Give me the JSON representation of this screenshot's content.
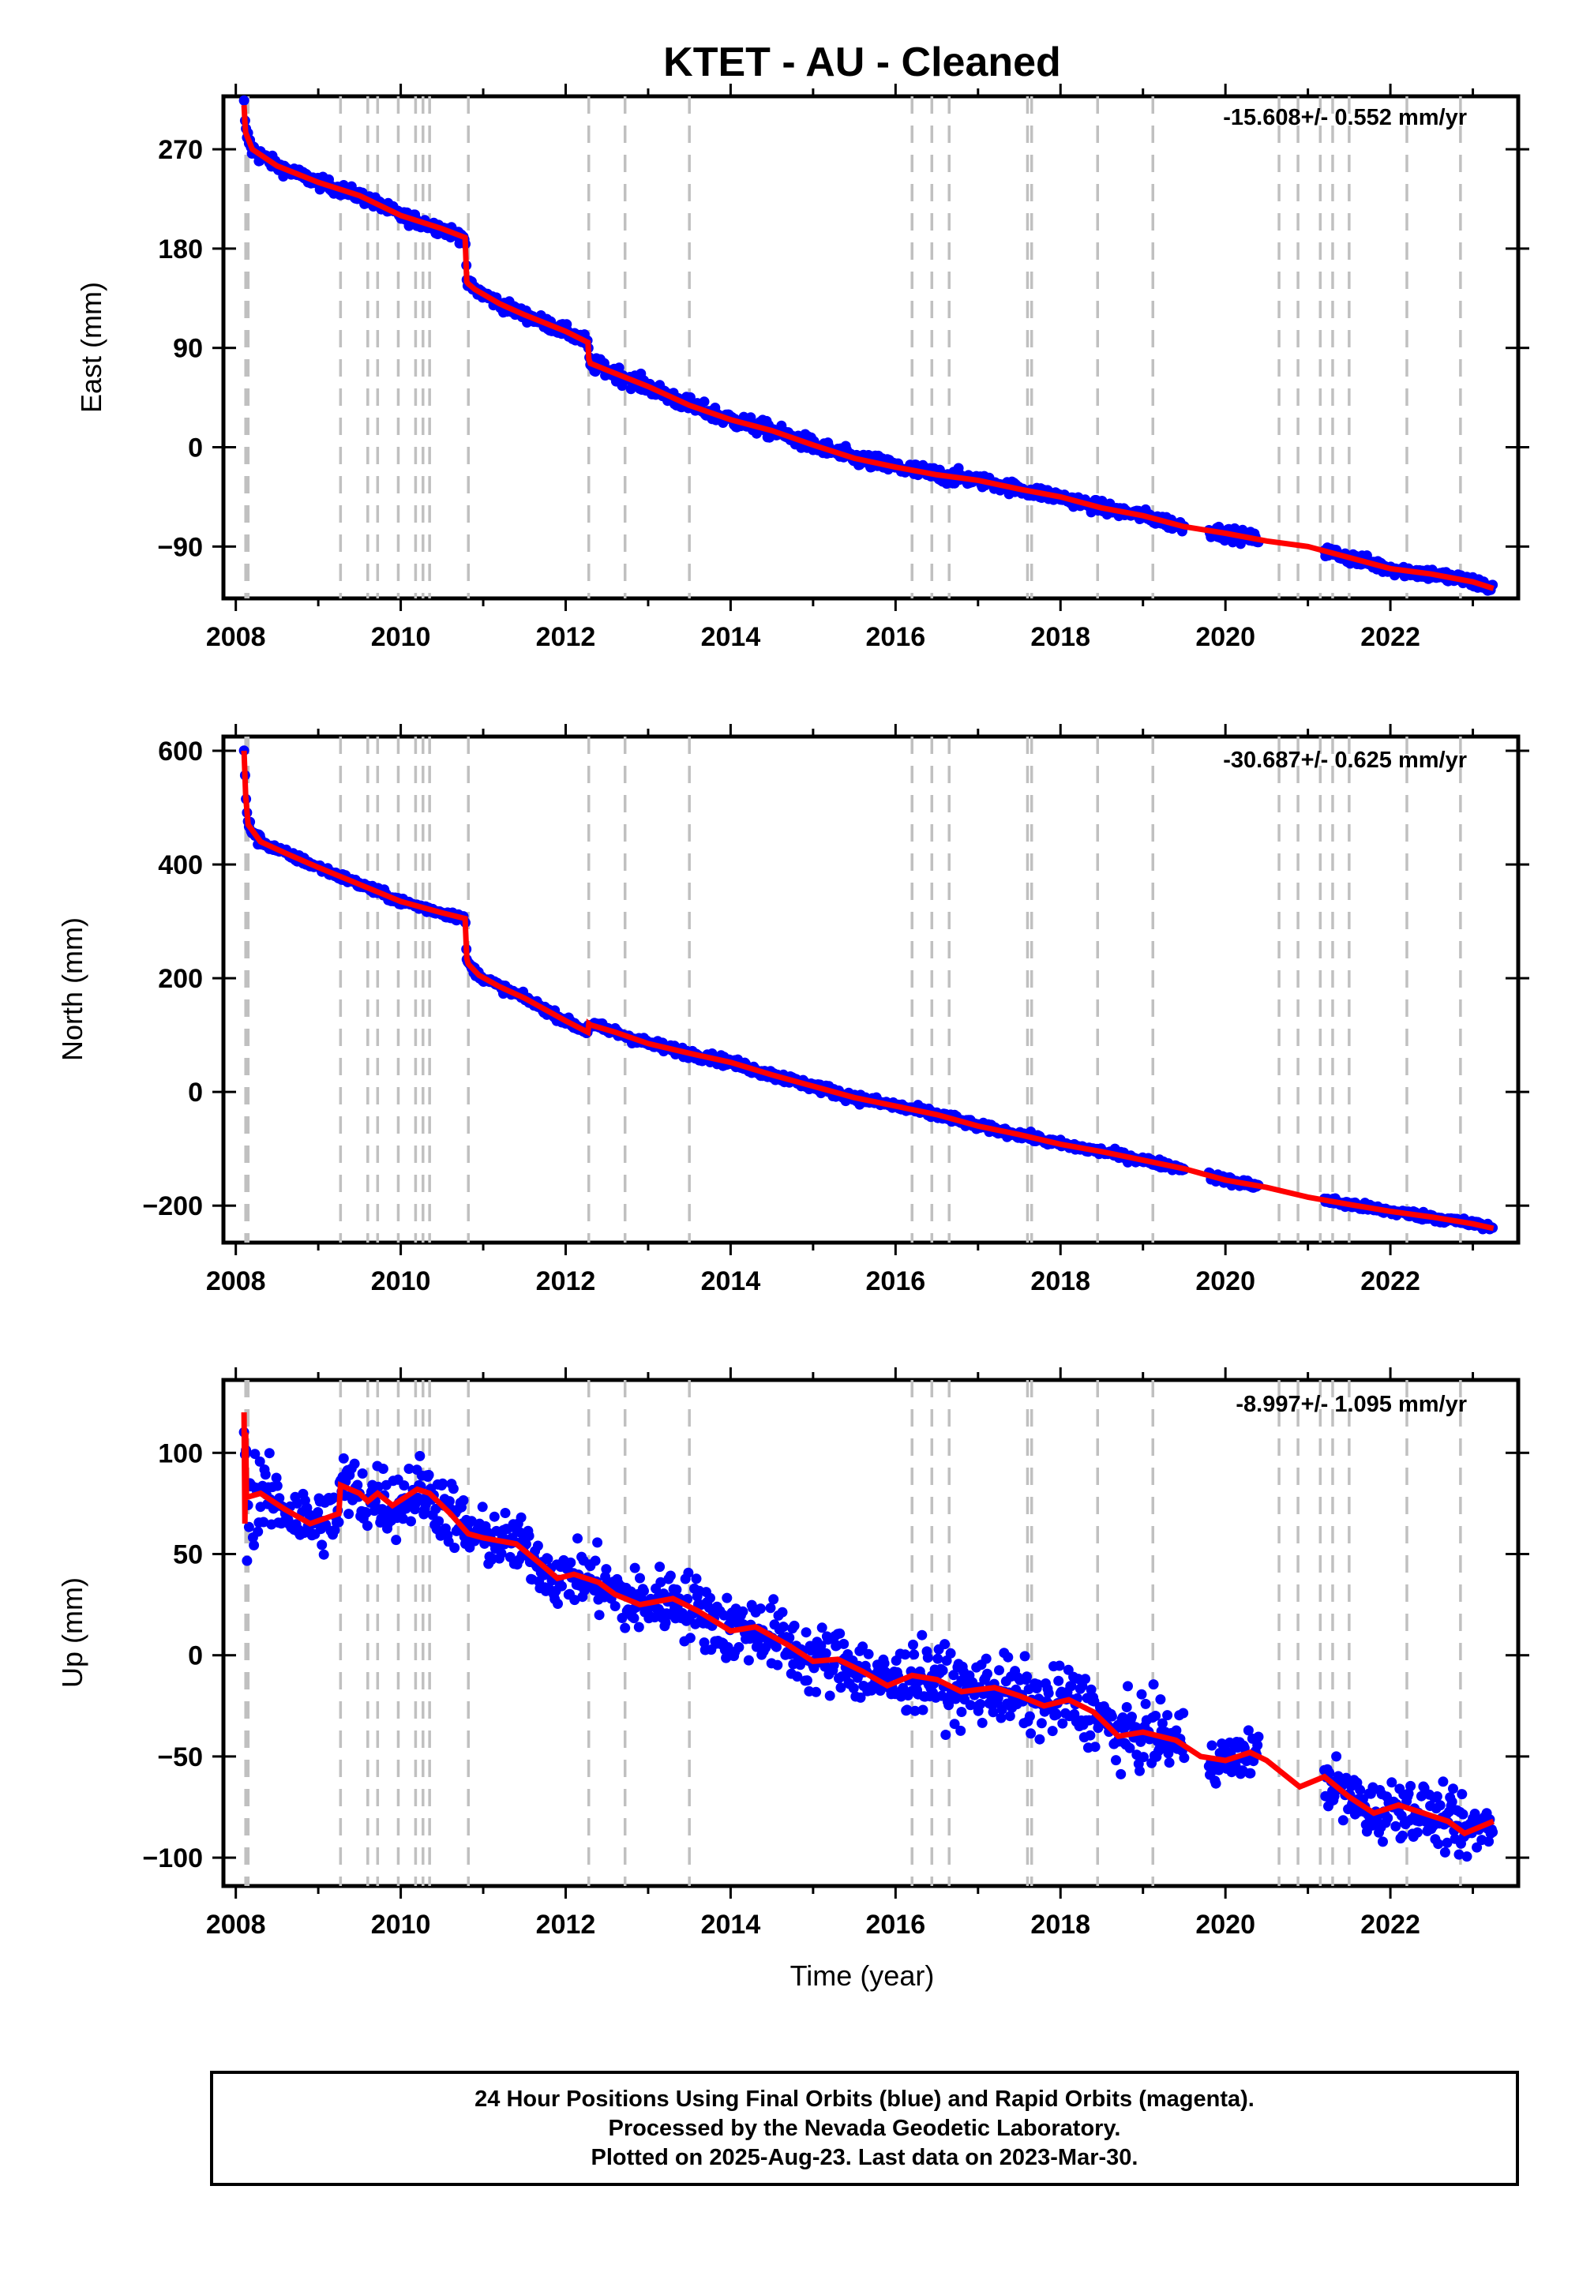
{
  "title": "KTET  - AU - Cleaned",
  "xlabel": "Time (year)",
  "footer": {
    "line1": "24 Hour Positions Using Final Orbits (blue) and Rapid Orbits (magenta).",
    "line2": "Processed by the Nevada Geodetic Laboratory.",
    "line3": "Plotted on 2025-Aug-23. Last data on 2023-Mar-30."
  },
  "colors": {
    "data_points": "#0000ff",
    "model_fit": "#ff0000",
    "event_lines": "#c0c0c0",
    "frame": "#000000"
  },
  "chart_data": [
    {
      "type": "scatter",
      "ylabel": "East (mm)",
      "rate_label": "-15.608+/- 0.552 mm/yr",
      "xlim": [
        2007.85,
        2023.55
      ],
      "ylim": [
        -137,
        318
      ],
      "yticks": [
        -90,
        0,
        90,
        180,
        270
      ],
      "xticks": [
        2008,
        2010,
        2012,
        2014,
        2016,
        2018,
        2020,
        2022
      ],
      "grid": false,
      "events": [
        2008.12,
        2008.15,
        2009.27,
        2009.6,
        2009.72,
        2009.97,
        2010.18,
        2010.27,
        2010.35,
        2010.82,
        2012.28,
        2012.72,
        2013.5,
        2016.2,
        2016.44,
        2016.65,
        2017.6,
        2017.65,
        2018.45,
        2019.12,
        2020.65,
        2020.88,
        2021.15,
        2021.3,
        2021.5,
        2022.2,
        2022.85
      ],
      "fit_series": {
        "x": [
          2008.1,
          2008.11,
          2008.12,
          2008.2,
          2008.5,
          2009.0,
          2009.5,
          2010.0,
          2010.5,
          2010.78,
          2010.8,
          2010.82,
          2010.9,
          2011.2,
          2011.5,
          2012.0,
          2012.27,
          2012.28,
          2012.3,
          2012.5,
          2013.0,
          2013.5,
          2014.0,
          2014.5,
          2015.0,
          2015.5,
          2016.0,
          2016.5,
          2017.0,
          2017.5,
          2018.0,
          2018.5,
          2019.0,
          2019.5,
          2020.0,
          2020.5,
          2021.0,
          2021.5,
          2022.0,
          2022.5,
          2023.0,
          2023.25
        ],
        "y": [
          310,
          295,
          285,
          270,
          255,
          240,
          228,
          210,
          198,
          190,
          150,
          148,
          143,
          130,
          120,
          105,
          95,
          80,
          76,
          70,
          55,
          38,
          25,
          15,
          2,
          -10,
          -18,
          -25,
          -30,
          -38,
          -45,
          -55,
          -62,
          -72,
          -78,
          -85,
          -90,
          -100,
          -110,
          -115,
          -122,
          -128
        ]
      },
      "point_clusters": [
        {
          "x_range": [
            2008.1,
            2008.3
          ],
          "scatter": 6
        },
        {
          "x_range": [
            2008.3,
            2010.8
          ],
          "scatter": 4
        },
        {
          "x_range": [
            2010.8,
            2012.3
          ],
          "scatter": 4
        },
        {
          "x_range": [
            2012.3,
            2016.8
          ],
          "scatter": 5
        },
        {
          "x_range": [
            2016.8,
            2019.5
          ],
          "scatter": 4
        },
        {
          "x_range": [
            2019.8,
            2020.4
          ],
          "scatter": 4
        },
        {
          "x_range": [
            2021.2,
            2023.25
          ],
          "scatter": 4
        }
      ]
    },
    {
      "type": "scatter",
      "ylabel": "North (mm)",
      "rate_label": "-30.687+/- 0.625 mm/yr",
      "xlim": [
        2007.85,
        2023.55
      ],
      "ylim": [
        -265,
        625
      ],
      "yticks": [
        -200,
        0,
        200,
        400,
        600
      ],
      "xticks": [
        2008,
        2010,
        2012,
        2014,
        2016,
        2018,
        2020,
        2022
      ],
      "grid": false,
      "events": [
        2008.12,
        2008.15,
        2009.27,
        2009.6,
        2009.72,
        2009.97,
        2010.18,
        2010.27,
        2010.35,
        2010.82,
        2012.28,
        2012.72,
        2013.5,
        2016.2,
        2016.44,
        2016.65,
        2017.6,
        2017.65,
        2018.45,
        2019.12,
        2020.65,
        2020.88,
        2021.15,
        2021.3,
        2021.5,
        2022.2,
        2022.85
      ],
      "fit_series": {
        "x": [
          2008.1,
          2008.12,
          2008.15,
          2008.3,
          2008.6,
          2009.0,
          2009.5,
          2010.0,
          2010.5,
          2010.78,
          2010.8,
          2010.82,
          2010.95,
          2011.2,
          2011.5,
          2012.0,
          2012.27,
          2012.28,
          2012.3,
          2012.6,
          2013.0,
          2013.5,
          2014.0,
          2014.5,
          2015.0,
          2015.5,
          2016.0,
          2016.5,
          2017.0,
          2017.5,
          2018.0,
          2018.5,
          2019.0,
          2019.5,
          2020.0,
          2020.5,
          2021.0,
          2021.5,
          2022.0,
          2022.5,
          2023.0,
          2023.25
        ],
        "y": [
          600,
          520,
          470,
          440,
          420,
          395,
          365,
          335,
          315,
          305,
          235,
          225,
          205,
          185,
          165,
          125,
          105,
          120,
          118,
          105,
          85,
          68,
          52,
          30,
          10,
          -10,
          -25,
          -40,
          -60,
          -75,
          -92,
          -105,
          -120,
          -135,
          -155,
          -168,
          -185,
          -198,
          -210,
          -220,
          -232,
          -240
        ]
      },
      "point_clusters": [
        {
          "x_range": [
            2008.1,
            2008.3
          ],
          "scatter": 8
        },
        {
          "x_range": [
            2008.3,
            2010.8
          ],
          "scatter": 5
        },
        {
          "x_range": [
            2010.8,
            2012.3
          ],
          "scatter": 5
        },
        {
          "x_range": [
            2012.3,
            2016.8
          ],
          "scatter": 6
        },
        {
          "x_range": [
            2016.8,
            2019.5
          ],
          "scatter": 5
        },
        {
          "x_range": [
            2019.8,
            2020.4
          ],
          "scatter": 5
        },
        {
          "x_range": [
            2021.2,
            2023.25
          ],
          "scatter": 5
        }
      ]
    },
    {
      "type": "scatter",
      "ylabel": "Up (mm)",
      "rate_label": "-8.997+/- 1.095 mm/yr",
      "xlim": [
        2007.85,
        2023.55
      ],
      "ylim": [
        -114,
        136
      ],
      "yticks": [
        -100,
        -50,
        0,
        50,
        100
      ],
      "xticks": [
        2008,
        2010,
        2012,
        2014,
        2016,
        2018,
        2020,
        2022
      ],
      "grid": false,
      "events": [
        2008.12,
        2008.15,
        2009.27,
        2009.6,
        2009.72,
        2009.97,
        2010.18,
        2010.27,
        2010.35,
        2010.82,
        2012.28,
        2012.72,
        2013.5,
        2016.2,
        2016.44,
        2016.65,
        2017.6,
        2017.65,
        2018.45,
        2019.12,
        2020.65,
        2020.88,
        2021.15,
        2021.3,
        2021.5,
        2022.2,
        2022.85
      ],
      "fit_series": {
        "x": [
          2008.1,
          2008.11,
          2008.12,
          2008.13,
          2008.3,
          2008.6,
          2008.9,
          2009.25,
          2009.27,
          2009.5,
          2009.6,
          2009.72,
          2009.9,
          2010.2,
          2010.35,
          2010.6,
          2010.82,
          2011.0,
          2011.4,
          2011.7,
          2011.9,
          2012.1,
          2012.4,
          2012.6,
          2012.9,
          2013.3,
          2013.6,
          2014.0,
          2014.3,
          2014.7,
          2015.0,
          2015.3,
          2015.6,
          2015.9,
          2016.2,
          2016.5,
          2016.8,
          2017.2,
          2017.5,
          2017.8,
          2018.1,
          2018.4,
          2018.7,
          2019.0,
          2019.4,
          2019.7,
          2020.0,
          2020.3,
          2020.5,
          2020.9,
          2021.2,
          2021.5,
          2021.8,
          2022.1,
          2022.4,
          2022.7,
          2022.9,
          2023.25
        ],
        "y": [
          120,
          65,
          110,
          78,
          80,
          72,
          65,
          70,
          84,
          80,
          76,
          80,
          74,
          82,
          80,
          70,
          60,
          58,
          55,
          45,
          38,
          40,
          36,
          30,
          25,
          28,
          22,
          12,
          14,
          5,
          -3,
          -2,
          -8,
          -15,
          -10,
          -12,
          -18,
          -16,
          -20,
          -25,
          -22,
          -28,
          -40,
          -38,
          -42,
          -50,
          -52,
          -48,
          -52,
          -65,
          -60,
          -70,
          -78,
          -74,
          -78,
          -82,
          -88,
          -82
        ]
      },
      "point_clusters": [
        {
          "x_range": [
            2008.1,
            2008.3
          ],
          "scatter": 18
        },
        {
          "x_range": [
            2008.3,
            2010.8
          ],
          "scatter": 12
        },
        {
          "x_range": [
            2010.8,
            2012.3
          ],
          "scatter": 10
        },
        {
          "x_range": [
            2012.3,
            2016.8
          ],
          "scatter": 12
        },
        {
          "x_range": [
            2016.8,
            2019.5
          ],
          "scatter": 12
        },
        {
          "x_range": [
            2019.8,
            2020.4
          ],
          "scatter": 8
        },
        {
          "x_range": [
            2021.2,
            2023.25
          ],
          "scatter": 10
        }
      ]
    }
  ]
}
